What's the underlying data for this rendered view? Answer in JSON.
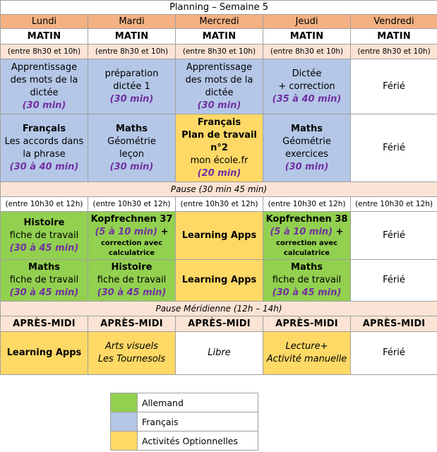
{
  "title": "Planning – Semaine 5",
  "days": [
    "Lundi",
    "Mardi",
    "Mercredi",
    "Jeudi",
    "Vendredi"
  ],
  "matin_label": "MATIN",
  "matin_hours": "(entre 8h30 et 10h)",
  "row1": {
    "lundi": {
      "lines": [
        "Apprentissage",
        "des mots de la",
        "dictée"
      ],
      "dur": "(30 min)"
    },
    "mardi": {
      "lines": [
        "préparation",
        "dictée 1"
      ],
      "dur": "(30 min)"
    },
    "mercredi": {
      "lines": [
        "Apprentissage",
        "des mots de la",
        "dictée"
      ],
      "dur": "(30 min)"
    },
    "jeudi": {
      "lines": [
        "Dictée",
        "+ correction"
      ],
      "dur": "(35 à 40 min)"
    },
    "vendredi": "Férié"
  },
  "row2": {
    "lundi": {
      "head": "Français",
      "lines": [
        "Les accords dans",
        "la phrase"
      ],
      "dur": "(30 à 40 min)"
    },
    "mardi": {
      "head": "Maths",
      "lines": [
        "Géométrie",
        "leçon"
      ],
      "dur": "(30 min)"
    },
    "mercredi": {
      "head": [
        "Français",
        "Plan de travail",
        "n°2"
      ],
      "lines": [
        "mon école.fr"
      ],
      "dur": "(20 min)"
    },
    "jeudi": {
      "head": "Maths",
      "lines": [
        "Géométrie",
        "exercices"
      ],
      "dur": "(30 min)"
    },
    "vendredi": "Férié"
  },
  "pause1": "Pause (30 min 45 min)",
  "mid_hours": "(entre 10h30 et 12h)",
  "row3": {
    "lundi": {
      "head": "Histoire",
      "lines": [
        "fiche de travail"
      ],
      "dur": "(30 à 45 min)"
    },
    "mardi": {
      "head": "Kopfrechnen 37",
      "dur": "(5 à 10 min)",
      "plus": " +",
      "small": [
        "correction avec",
        "calculatrice"
      ]
    },
    "mercredi": "Learning Apps",
    "jeudi": {
      "head": "Kopfrechnen 38",
      "dur": "(5 à 10 min)",
      "plus": " +",
      "small": [
        "correction avec",
        "calculatrice"
      ]
    },
    "vendredi": "Férié"
  },
  "row4": {
    "lundi": {
      "head": "Maths",
      "lines": [
        "fiche de travail"
      ],
      "dur": "(30 à 45 min)"
    },
    "mardi": {
      "head": "Histoire",
      "lines": [
        "fiche de travail"
      ],
      "dur": "(30 à 45 min)"
    },
    "mercredi": "Learning Apps",
    "jeudi": {
      "head": "Maths",
      "lines": [
        "fiche de travail"
      ],
      "dur": "(30 à 45 min)"
    },
    "vendredi": "Férié"
  },
  "pause2": "Pause Méridienne (12h – 14h)",
  "aprem_label": "APRÈS-MIDI",
  "row5": {
    "lundi": "Learning Apps",
    "mardi": [
      "Arts visuels",
      "Les Tournesols"
    ],
    "mercredi": "Libre",
    "jeudi": [
      "Lecture+",
      "Activité manuelle"
    ],
    "vendredi": "Férié"
  },
  "legend": [
    {
      "label": "Allemand",
      "color": "#92d050"
    },
    {
      "label": "Français",
      "color": "#b4c7e7"
    },
    {
      "label": "Activités Optionnelles",
      "color": "#ffd966"
    }
  ]
}
